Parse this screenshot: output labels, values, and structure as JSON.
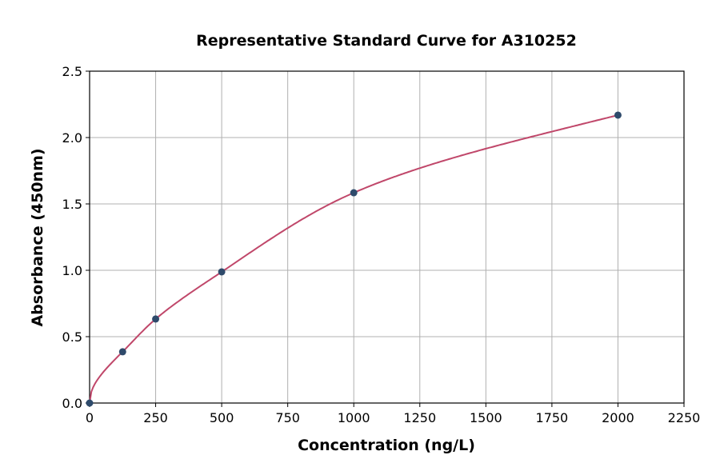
{
  "chart_data": {
    "type": "scatter",
    "title": "Representative Standard Curve for A310252",
    "xlabel": "Concentration (ng/L)",
    "ylabel": "Absorbance (450nm)",
    "xlim": [
      0,
      2250
    ],
    "ylim": [
      0,
      2.5
    ],
    "xticks": [
      "0",
      "250",
      "500",
      "750",
      "1000",
      "1250",
      "1500",
      "1750",
      "2000",
      "2250"
    ],
    "yticks": [
      "0.0",
      "0.5",
      "1.0",
      "1.5",
      "2.0",
      "2.5"
    ],
    "grid": true,
    "points": [
      {
        "x": 0,
        "y": 0
      },
      {
        "x": 125,
        "y": 0.386
      },
      {
        "x": 250,
        "y": 0.633
      },
      {
        "x": 500,
        "y": 0.988
      },
      {
        "x": 1000,
        "y": 1.584
      },
      {
        "x": 2000,
        "y": 2.169
      }
    ],
    "colors": {
      "points": "#2e4a6b",
      "curve": "#c0476a"
    }
  }
}
